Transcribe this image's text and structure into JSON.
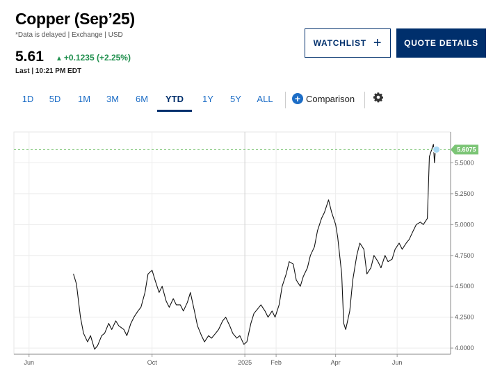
{
  "header": {
    "title": "Copper (Sep’25)",
    "meta": "*Data is delayed | Exchange | USD",
    "price": "5.61",
    "change": "+0.1235 (+2.25%)",
    "last_time": "Last | 10:21 PM EDT"
  },
  "buttons": {
    "watchlist_label": "WATCHLIST",
    "quote_details_label": "QUOTE DETAILS"
  },
  "tabs": [
    "1D",
    "5D",
    "1M",
    "3M",
    "6M",
    "YTD",
    "1Y",
    "5Y",
    "ALL"
  ],
  "active_tab": "YTD",
  "comparison_label": "Comparison",
  "colors": {
    "brand": "#002f6c",
    "link": "#1c6dc6",
    "up": "#1f8f4d",
    "last_marker": "#7cc576",
    "current_dot": "#a7d8f4"
  },
  "chart_data": {
    "type": "line",
    "x_ticks": [
      "Jun",
      "Oct",
      "2025",
      "Feb",
      "Apr",
      "Jun"
    ],
    "y_ticks": [
      "4.0000",
      "4.2500",
      "4.5000",
      "4.7500",
      "5.0000",
      "5.2500",
      "5.5000"
    ],
    "ylim": [
      3.95,
      5.75
    ],
    "last_value_label": "5.6075",
    "last_value": 5.6075,
    "grid": true,
    "series": [
      {
        "x": [
          "2024-07-15",
          "2024-07-18",
          "2024-07-22",
          "2024-07-25",
          "2024-07-29",
          "2024-08-01",
          "2024-08-05",
          "2024-08-08",
          "2024-08-12",
          "2024-08-15",
          "2024-08-19",
          "2024-08-22",
          "2024-08-26",
          "2024-08-29",
          "2024-09-03",
          "2024-09-06",
          "2024-09-10",
          "2024-09-13",
          "2024-09-17",
          "2024-09-20",
          "2024-09-24",
          "2024-09-27",
          "2024-10-01",
          "2024-10-04",
          "2024-10-08",
          "2024-10-11",
          "2024-10-15",
          "2024-10-18",
          "2024-10-22",
          "2024-10-25",
          "2024-10-29",
          "2024-11-01",
          "2024-11-05",
          "2024-11-08",
          "2024-11-12",
          "2024-11-15",
          "2024-11-19",
          "2024-11-22",
          "2024-11-26",
          "2024-11-29",
          "2024-12-03",
          "2024-12-06",
          "2024-12-10",
          "2024-12-13",
          "2024-12-17",
          "2024-12-20",
          "2024-12-24",
          "2024-12-27",
          "2024-12-31",
          "2025-01-03",
          "2025-01-07",
          "2025-01-10",
          "2025-01-14",
          "2025-01-17",
          "2025-01-21",
          "2025-01-24",
          "2025-01-28",
          "2025-01-31",
          "2025-02-04",
          "2025-02-07",
          "2025-02-11",
          "2025-02-14",
          "2025-02-18",
          "2025-02-21",
          "2025-02-25",
          "2025-02-28",
          "2025-03-04",
          "2025-03-07",
          "2025-03-11",
          "2025-03-14",
          "2025-03-18",
          "2025-03-21",
          "2025-03-25",
          "2025-03-28",
          "2025-04-01",
          "2025-04-03",
          "2025-04-07",
          "2025-04-09",
          "2025-04-11",
          "2025-04-15",
          "2025-04-18",
          "2025-04-22",
          "2025-04-25",
          "2025-04-29",
          "2025-05-02",
          "2025-05-06",
          "2025-05-09",
          "2025-05-13",
          "2025-05-16",
          "2025-05-20",
          "2025-05-23",
          "2025-05-27",
          "2025-05-30",
          "2025-06-03",
          "2025-06-06",
          "2025-06-10",
          "2025-06-13",
          "2025-06-17",
          "2025-06-20",
          "2025-06-24",
          "2025-06-27",
          "2025-07-01",
          "2025-07-03",
          "2025-07-07",
          "2025-07-08",
          "2025-07-09",
          "2025-07-10"
        ],
        "values": [
          4.6,
          4.52,
          4.25,
          4.12,
          4.05,
          4.1,
          3.99,
          4.02,
          4.1,
          4.12,
          4.2,
          4.15,
          4.22,
          4.18,
          4.15,
          4.1,
          4.2,
          4.25,
          4.3,
          4.33,
          4.45,
          4.6,
          4.63,
          4.55,
          4.45,
          4.5,
          4.38,
          4.33,
          4.4,
          4.35,
          4.35,
          4.3,
          4.37,
          4.45,
          4.3,
          4.18,
          4.1,
          4.05,
          4.1,
          4.08,
          4.12,
          4.15,
          4.22,
          4.25,
          4.18,
          4.12,
          4.08,
          4.1,
          4.03,
          4.05,
          4.2,
          4.28,
          4.32,
          4.35,
          4.3,
          4.25,
          4.3,
          4.25,
          4.35,
          4.5,
          4.6,
          4.7,
          4.68,
          4.55,
          4.5,
          4.58,
          4.65,
          4.75,
          4.82,
          4.95,
          5.05,
          5.1,
          5.2,
          5.1,
          5.0,
          4.9,
          4.6,
          4.2,
          4.15,
          4.3,
          4.55,
          4.75,
          4.85,
          4.8,
          4.6,
          4.65,
          4.75,
          4.7,
          4.65,
          4.75,
          4.7,
          4.72,
          4.8,
          4.85,
          4.8,
          4.85,
          4.88,
          4.95,
          5.0,
          5.02,
          5.0,
          5.05,
          5.55,
          5.65,
          5.5,
          5.6,
          5.6075
        ]
      }
    ]
  }
}
